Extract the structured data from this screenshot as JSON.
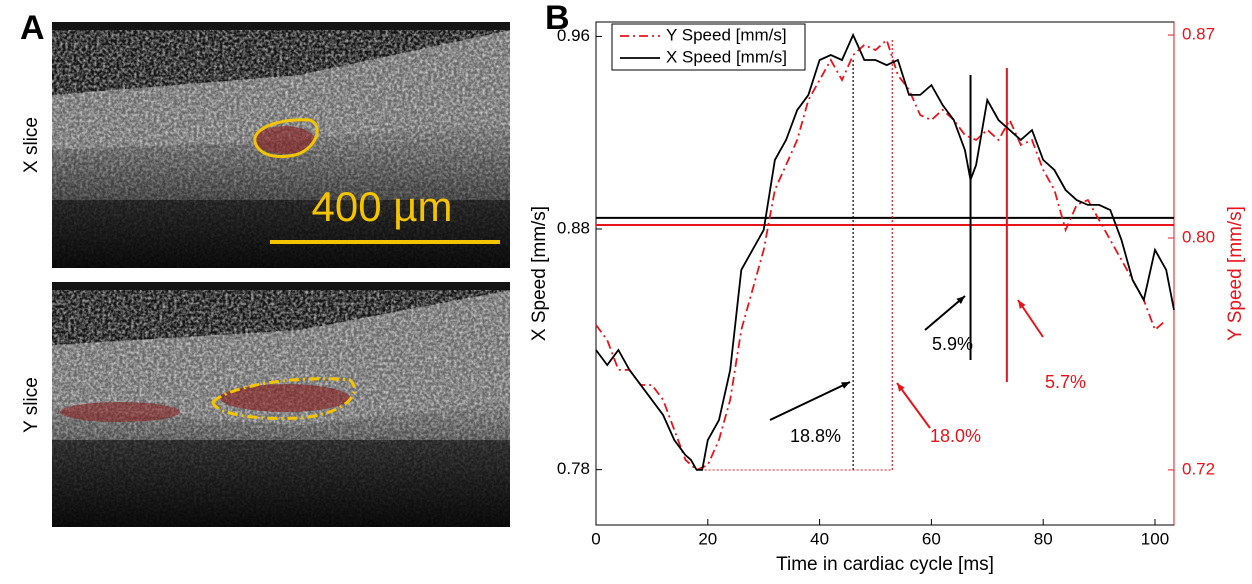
{
  "panel_labels": [
    "A",
    "B"
  ],
  "images": {
    "labels": [
      "X slice",
      "Y slice"
    ],
    "scale_bar": "400 µm"
  },
  "chart_data": {
    "type": "line",
    "xlabel": "Time in cardiac cycle [ms]",
    "ylabel": "X Speed [mm/s]",
    "y2label": "Y Speed [mm/s]",
    "xlim": [
      0,
      103.4
    ],
    "xticks": [
      0,
      20,
      40,
      60,
      80,
      100
    ],
    "ylim": [
      0.757,
      0.966
    ],
    "yticks": [
      0.78,
      0.88,
      0.96
    ],
    "y2lim": [
      0.701,
      0.8745
    ],
    "y2ticks": [
      0.72,
      {
        "value": 0.8,
        "label": "0.80"
      },
      0.87
    ],
    "y2color": "#e8141b",
    "series": [
      {
        "name": "Y Speed [mm/s]",
        "color": "#e8141b",
        "dash": "dash-dot",
        "axis": "y2",
        "x": [
          0,
          2,
          4,
          6,
          8,
          10,
          12,
          14,
          16,
          18,
          20,
          22,
          24,
          26,
          28,
          30,
          32,
          34,
          36,
          38,
          40,
          42,
          44,
          46,
          48,
          50,
          52,
          54,
          56,
          58,
          60,
          62,
          64,
          66,
          68,
          70,
          72,
          74,
          76,
          78,
          80,
          82,
          84,
          86,
          88,
          90,
          92,
          94,
          96,
          98,
          100,
          102
        ],
        "values": [
          0.77,
          0.7648,
          0.7545,
          0.7545,
          0.7493,
          0.7493,
          0.7442,
          0.7338,
          0.7235,
          0.72,
          0.7217,
          0.7304,
          0.7442,
          0.7683,
          0.7821,
          0.7959,
          0.8166,
          0.8252,
          0.8338,
          0.8476,
          0.8545,
          0.8614,
          0.8545,
          0.8631,
          0.8666,
          0.8648,
          0.8683,
          0.8562,
          0.8511,
          0.8424,
          0.8407,
          0.8442,
          0.8407,
          0.8355,
          0.8338,
          0.8373,
          0.8338,
          0.8407,
          0.8321,
          0.8338,
          0.8235,
          0.8166,
          0.8028,
          0.8114,
          0.8131,
          0.8062,
          0.7993,
          0.7924,
          0.7855,
          0.7786,
          0.7683,
          0.7717
        ]
      },
      {
        "name": "X Speed [mm/s]",
        "color": "#000000",
        "dash": "solid",
        "axis": "y",
        "x": [
          0,
          2,
          4,
          6,
          8,
          10,
          12,
          14,
          16,
          17,
          18,
          19,
          20,
          22,
          24,
          26,
          28,
          30,
          32,
          34,
          36,
          38,
          40,
          42,
          44,
          46,
          48,
          50,
          52,
          54,
          56,
          58,
          60,
          62,
          64,
          66,
          67,
          68,
          70,
          72,
          74,
          76,
          78,
          80,
          82,
          84,
          86,
          88,
          90,
          92,
          94,
          96,
          98,
          100,
          102,
          103.4
        ],
        "values": [
          0.8297,
          0.8235,
          0.8297,
          0.8214,
          0.8152,
          0.809,
          0.8027,
          0.7923,
          0.7861,
          0.784,
          0.7799,
          0.7799,
          0.7923,
          0.8006,
          0.8214,
          0.863,
          0.8713,
          0.8796,
          0.9087,
          0.917,
          0.9294,
          0.9357,
          0.9502,
          0.9523,
          0.9502,
          0.9606,
          0.9502,
          0.9502,
          0.9481,
          0.9502,
          0.9357,
          0.9357,
          0.9398,
          0.9315,
          0.9253,
          0.9128,
          0.9004,
          0.9066,
          0.9336,
          0.9253,
          0.9211,
          0.917,
          0.9211,
          0.9087,
          0.9045,
          0.8962,
          0.892,
          0.89,
          0.89,
          0.8879,
          0.8754,
          0.8588,
          0.8505,
          0.8713,
          0.863,
          0.8463
        ]
      }
    ],
    "hlines": [
      {
        "axis": "y",
        "value": 0.8846,
        "color": "#000000"
      },
      {
        "axis": "y2",
        "value": 0.8045,
        "color": "#e8141b"
      }
    ],
    "vlines": [
      {
        "x": 46,
        "color": "#000000",
        "style": "dotted"
      },
      {
        "x": 53,
        "color": "#e8141b",
        "style": "dotted"
      },
      {
        "x": 67,
        "color": "#000000",
        "style": "solid"
      },
      {
        "x": 73.5,
        "color": "#e8141b",
        "style": "solid"
      }
    ],
    "annotations": [
      {
        "text": "18.8%",
        "color": "#000000"
      },
      {
        "text": "18.0%",
        "color": "#e8141b"
      },
      {
        "text": "5.9%",
        "color": "#000000"
      },
      {
        "text": "5.7%",
        "color": "#e8141b"
      }
    ],
    "legend": "upper left"
  }
}
